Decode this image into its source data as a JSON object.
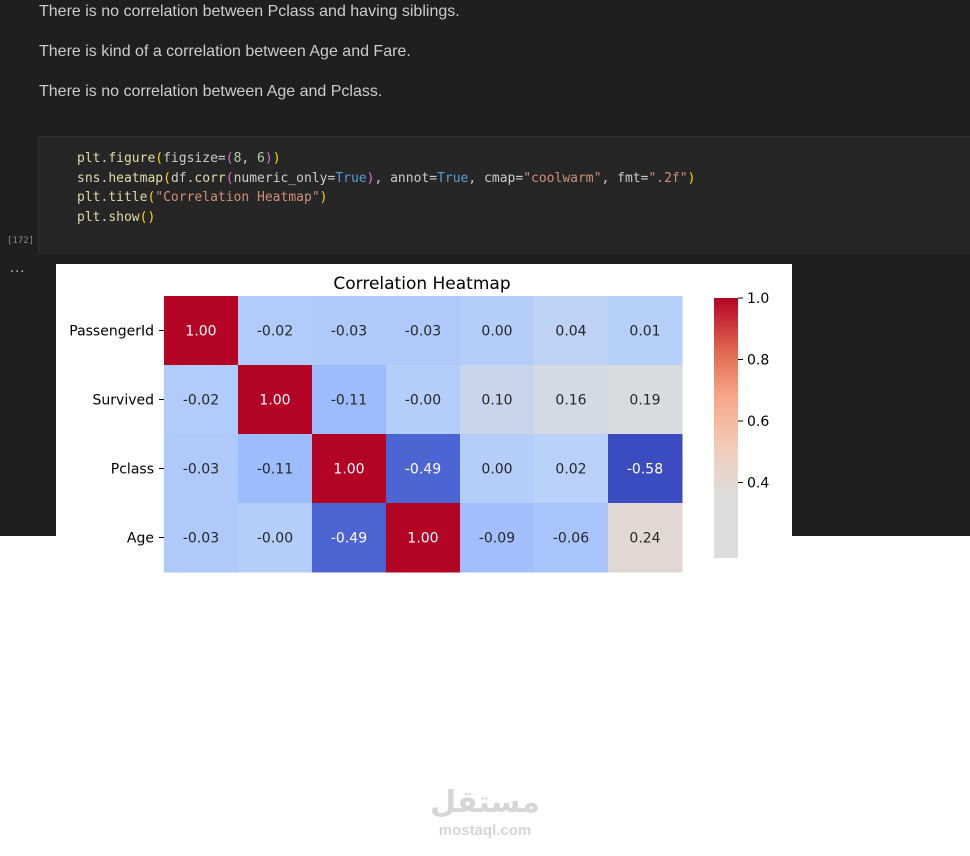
{
  "markdown": [
    "There is no correlation between Pclass and having siblings.",
    "There is kind of a correlation between Age and Fare.",
    "There is no correlation between Age and Pclass."
  ],
  "cell": {
    "exec_count": "[172]",
    "output_menu": "...",
    "code_lines": [
      "plt.figure(figsize=(8, 6))",
      "sns.heatmap(df.corr(numeric_only=True), annot=True, cmap=\"coolwarm\", fmt=\".2f\")",
      "plt.title(\"Correlation Heatmap\")",
      "plt.show()"
    ]
  },
  "chart_data": {
    "type": "heatmap",
    "title": "Correlation Heatmap",
    "cmap": "coolwarm",
    "rows": [
      "PassengerId",
      "Survived",
      "Pclass",
      "Age"
    ],
    "values": [
      [
        1.0,
        -0.02,
        -0.03,
        -0.03,
        0.0,
        0.04,
        0.01
      ],
      [
        -0.02,
        1.0,
        -0.11,
        -0.0,
        0.1,
        0.16,
        0.19
      ],
      [
        -0.03,
        -0.11,
        1.0,
        -0.49,
        0.0,
        0.02,
        -0.58
      ],
      [
        -0.03,
        -0.0,
        -0.49,
        1.0,
        -0.09,
        -0.06,
        0.24
      ]
    ],
    "annotations": [
      [
        "1.00",
        "-0.02",
        "-0.03",
        "-0.03",
        "0.00",
        "0.04",
        "0.01"
      ],
      [
        "-0.02",
        "1.00",
        "-0.11",
        "-0.00",
        "0.10",
        "0.16",
        "0.19"
      ],
      [
        "-0.03",
        "-0.11",
        "1.00",
        "-0.49",
        "0.00",
        "0.02",
        "-0.58"
      ],
      [
        "-0.03",
        "-0.00",
        "-0.49",
        "1.00",
        "-0.09",
        "-0.06",
        "0.24"
      ]
    ],
    "colorbar_ticks": [
      "1.0",
      "0.8",
      "0.6",
      "0.4"
    ],
    "colorbar_values": [
      1.0,
      0.8,
      0.6,
      0.4
    ]
  },
  "watermark": {
    "arabic": "مستقل",
    "latin": "mostaql.com"
  }
}
